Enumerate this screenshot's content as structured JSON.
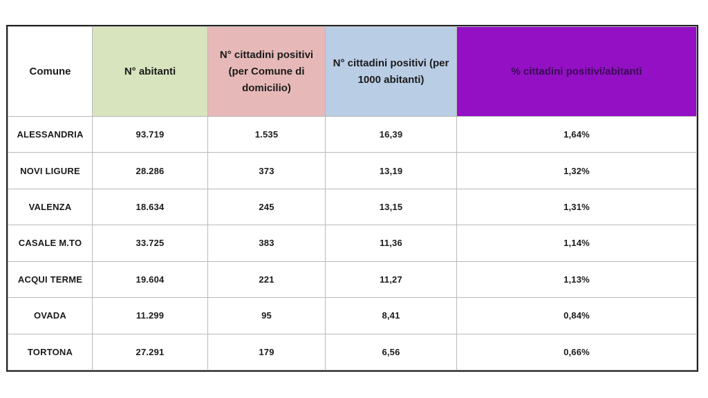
{
  "table": {
    "headers": [
      "Comune",
      "N° abitanti",
      "N° cittadini positivi (per Comune di domicilio)",
      "N° cittadini positivi (per 1000 abitanti)",
      "% cittadini positivi/abitanti"
    ],
    "header_colors": [
      "#ffffff",
      "#d7e4bd",
      "#e6b9b8",
      "#b9cde5",
      "#9310c4"
    ],
    "rows": [
      [
        "ALESSANDRIA",
        "93.719",
        "1.535",
        "16,39",
        "1,64%"
      ],
      [
        "NOVI LIGURE",
        "28.286",
        "373",
        "13,19",
        "1,32%"
      ],
      [
        "VALENZA",
        "18.634",
        "245",
        "13,15",
        "1,31%"
      ],
      [
        "CASALE M.TO",
        "33.725",
        "383",
        "11,36",
        "1,14%"
      ],
      [
        "ACQUI TERME",
        "19.604",
        "221",
        "11,27",
        "1,13%"
      ],
      [
        "OVADA",
        "11.299",
        "95",
        "8,41",
        "0,84%"
      ],
      [
        "TORTONA",
        "27.291",
        "179",
        "6,56",
        "0,66%"
      ]
    ]
  }
}
